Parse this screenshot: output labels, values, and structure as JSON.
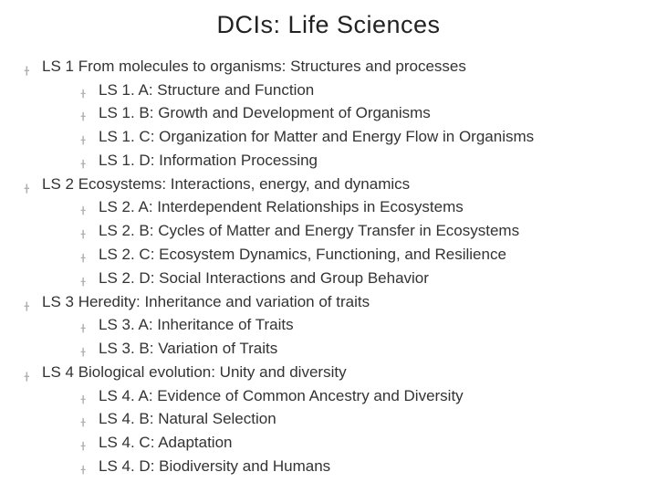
{
  "title": "DCIs:  Life Sciences",
  "bullet_color": "#b0b0b0",
  "text_color": "#333333",
  "background": "#ffffff",
  "font_family": "Arial",
  "title_fontsize": 27,
  "body_fontsize": 17,
  "bullet_glyph": "་",
  "items": [
    {
      "label": "LS 1  From molecules to organisms: Structures and processes",
      "children": [
        {
          "label": "LS 1. A: Structure and Function"
        },
        {
          "label": "LS 1. B: Growth and Development of Organisms"
        },
        {
          "label": "LS 1. C: Organization for Matter and Energy Flow in Organisms"
        },
        {
          "label": "LS 1. D: Information Processing"
        }
      ]
    },
    {
      "label": "LS 2  Ecosystems: Interactions, energy, and dynamics",
      "children": [
        {
          "label": "LS 2. A: Interdependent Relationships in Ecosystems"
        },
        {
          "label": "LS 2. B: Cycles of Matter and Energy Transfer in Ecosystems"
        },
        {
          "label": "LS 2. C: Ecosystem Dynamics, Functioning, and Resilience"
        },
        {
          "label": "LS 2. D: Social Interactions and Group Behavior"
        }
      ]
    },
    {
      "label": "LS 3  Heredity: Inheritance and variation of traits",
      "children": [
        {
          "label": "LS 3. A: Inheritance of Traits"
        },
        {
          "label": "LS 3. B: Variation of Traits"
        }
      ]
    },
    {
      "label": "LS 4  Biological evolution: Unity and diversity",
      "children": [
        {
          "label": "LS 4. A: Evidence of Common Ancestry and Diversity"
        },
        {
          "label": "LS 4. B: Natural Selection"
        },
        {
          "label": "LS 4. C: Adaptation"
        },
        {
          "label": "LS 4. D: Biodiversity and Humans"
        }
      ]
    }
  ]
}
